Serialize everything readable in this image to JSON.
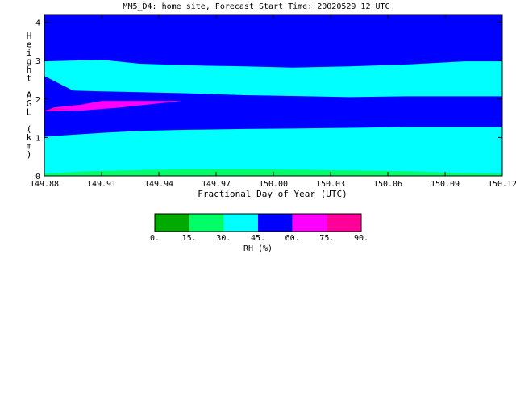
{
  "chart_data": {
    "type": "heatmap",
    "title": "MM5_D4: home site,  Forecast Start Time: 20020529 12 UTC",
    "xlabel": "Fractional Day of Year (UTC)",
    "ylabel": "Height AGL (km)",
    "xlim": [
      149.88,
      150.12
    ],
    "ylim": [
      0,
      4.2
    ],
    "x_ticks": [
      "149.88",
      "149.91",
      "149.94",
      "149.97",
      "150.00",
      "150.03",
      "150.06",
      "150.09",
      "150.12"
    ],
    "y_ticks": [
      "0",
      "1",
      "2",
      "3",
      "4"
    ],
    "colorbar": {
      "label": "RH (%)",
      "ticks": [
        "0.",
        "15.",
        "30.",
        "45.",
        "60.",
        "75.",
        "90."
      ],
      "colors": [
        "#00aa00",
        "#00ff66",
        "#00ffff",
        "#0000ff",
        "#ff00ff",
        "#ff0099"
      ]
    },
    "x": [
      149.88,
      149.895,
      149.91,
      149.93,
      149.955,
      149.985,
      150.01,
      150.04,
      150.07,
      150.1,
      150.12
    ],
    "bands": [
      {
        "name": "15-30",
        "color": "#00ff66",
        "top": [
          0.06,
          0.1,
          0.13,
          0.15,
          0.17,
          0.17,
          0.16,
          0.14,
          0.12,
          0.08,
          0.06
        ]
      },
      {
        "name": "30-45 lower",
        "color": "#00ffff",
        "top": [
          1.02,
          1.07,
          1.12,
          1.17,
          1.2,
          1.22,
          1.23,
          1.25,
          1.27,
          1.27,
          1.27
        ]
      },
      {
        "name": "45-60 middle",
        "color": "#0000ff",
        "top": [
          2.6,
          2.22,
          2.2,
          2.18,
          2.15,
          2.1,
          2.08,
          2.05,
          2.07,
          2.07,
          2.07
        ]
      },
      {
        "name": "30-45 upper",
        "color": "#00ffff",
        "top": [
          2.98,
          3.0,
          3.02,
          2.92,
          2.88,
          2.85,
          2.82,
          2.85,
          2.9,
          2.98,
          2.98
        ]
      }
    ],
    "upper_fill": "#0000ff",
    "plumes": [
      {
        "color": "#ff00ff",
        "points": [
          [
            149.88,
            1.68
          ],
          [
            149.885,
            1.78
          ],
          [
            149.899,
            1.85
          ],
          [
            149.91,
            1.95
          ],
          [
            149.952,
            1.95
          ],
          [
            149.92,
            1.78
          ],
          [
            149.9,
            1.7
          ]
        ]
      },
      {
        "color": "#ff0099",
        "points": [
          [
            149.88,
            1.7
          ],
          [
            149.885,
            1.76
          ],
          [
            149.895,
            1.73
          ]
        ]
      }
    ]
  }
}
